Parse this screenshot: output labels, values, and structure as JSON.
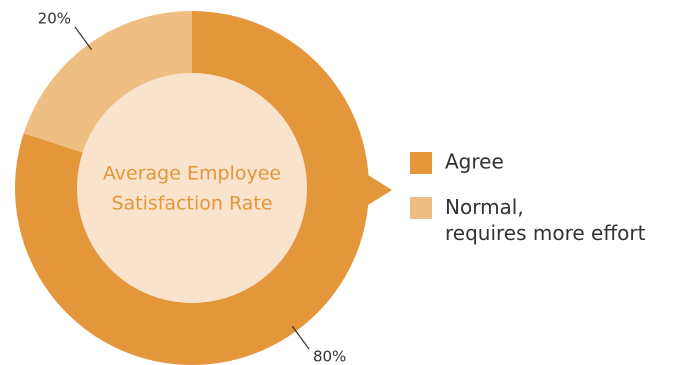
{
  "chart_data": {
    "type": "donut",
    "categories": [
      "Agree",
      "Normal, requires more effort"
    ],
    "values": [
      80,
      20
    ],
    "value_labels": [
      "80%",
      "20%"
    ],
    "colors": [
      "#e3973a",
      "#efbe82"
    ],
    "center_text": [
      "Average Employee",
      "Satisfaction Rate"
    ],
    "legend": "right"
  }
}
